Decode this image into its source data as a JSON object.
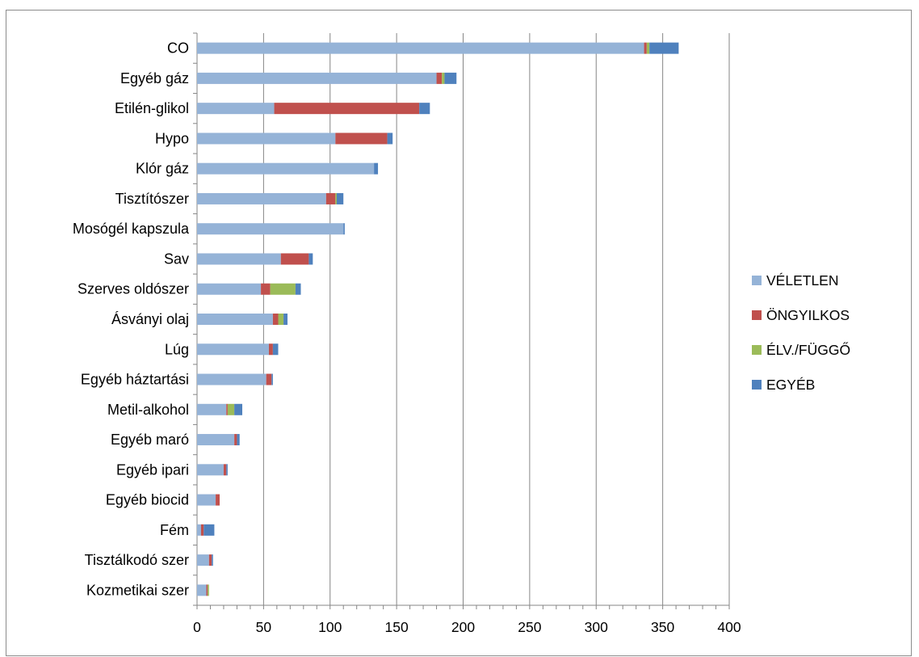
{
  "chart_data": {
    "type": "bar",
    "orientation": "horizontal",
    "stacked": true,
    "categories": [
      "CO",
      "Egyéb gáz",
      "Etilén-glikol",
      "Hypo",
      "Klór gáz",
      "Tisztítószer",
      "Mosógél kapszula",
      "Sav",
      "Szerves oldószer",
      "Ásványi olaj",
      "Lúg",
      "Egyéb háztartási",
      "Metil-alkohol",
      "Egyéb maró",
      "Egyéb ipari",
      "Egyéb biocid",
      "Fém",
      "Tisztálkodó szer",
      "Kozmetikai szer"
    ],
    "series": [
      {
        "name": "VÉLETLEN",
        "color": "#95b3d7",
        "values": [
          336,
          180,
          58,
          104,
          133,
          97,
          110,
          63,
          48,
          57,
          54,
          52,
          22,
          28,
          20,
          14,
          3,
          9,
          7
        ]
      },
      {
        "name": "ÖNGYILKOS",
        "color": "#c0504d",
        "values": [
          2,
          4,
          109,
          39,
          0,
          7,
          0,
          21,
          7,
          4,
          3,
          4,
          1,
          2,
          2,
          3,
          2,
          2,
          1
        ]
      },
      {
        "name": "ÉLV./FÜGGŐ",
        "color": "#9bbb59",
        "values": [
          2,
          2,
          0,
          0,
          0,
          1,
          0,
          0,
          19,
          4,
          0,
          0,
          5,
          0,
          0,
          0,
          0,
          0,
          1
        ]
      },
      {
        "name": "EGYÉB",
        "color": "#4f81bd",
        "values": [
          22,
          9,
          8,
          4,
          3,
          5,
          1,
          3,
          4,
          3,
          4,
          1,
          6,
          2,
          1,
          0,
          8,
          1,
          0
        ]
      }
    ],
    "xlim": [
      0,
      400
    ],
    "xticks": [
      "0",
      "50",
      "100",
      "150",
      "200",
      "250",
      "300",
      "350",
      "400"
    ],
    "grid": true,
    "legend_position": "right",
    "title": "",
    "xlabel": "",
    "ylabel": ""
  }
}
